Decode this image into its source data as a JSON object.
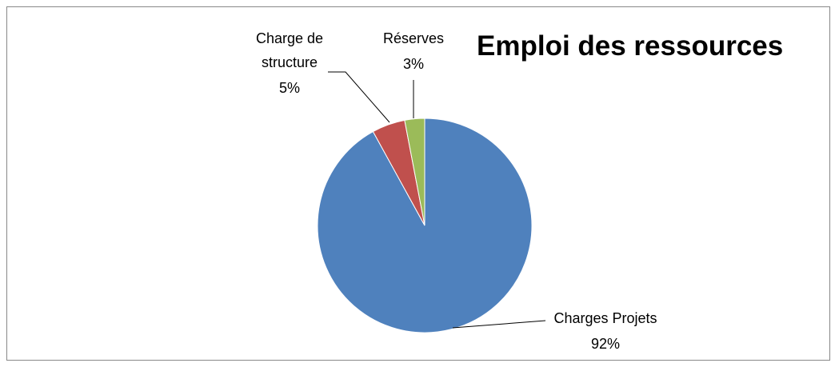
{
  "chart_data": {
    "type": "pie",
    "title": "Emploi des ressources",
    "categories": [
      "Charges Projets",
      "Charge de structure",
      "Réserves"
    ],
    "values": [
      92,
      5,
      3
    ],
    "value_labels": [
      "92%",
      "5%",
      "3%"
    ],
    "colors": [
      "#4f81bd",
      "#c0504d",
      "#9bbb59"
    ]
  }
}
